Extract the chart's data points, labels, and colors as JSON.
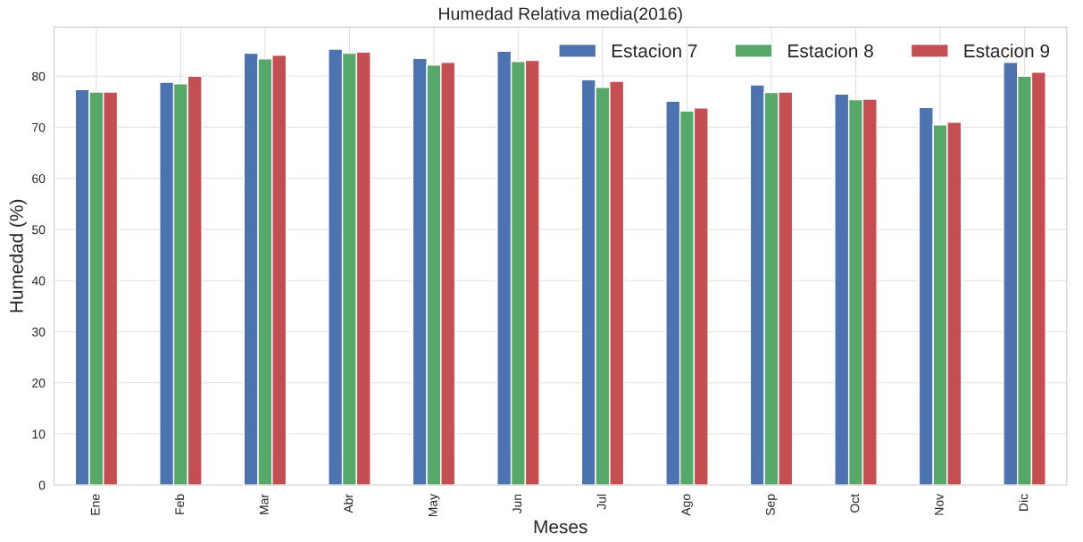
{
  "chart_data": {
    "type": "bar",
    "title": "Humedad Relativa media(2016)",
    "xlabel": "Meses",
    "ylabel": "Humedad (%)",
    "categories": [
      "Ene",
      "Feb",
      "Mar",
      "Abr",
      "May",
      "Jun",
      "Jul",
      "Ago",
      "Sep",
      "Oct",
      "Nov",
      "Dic"
    ],
    "series": [
      {
        "name": "Estacion 7",
        "color": "#4c72b0",
        "values": [
          77.4,
          78.8,
          84.5,
          85.3,
          83.5,
          84.9,
          79.3,
          75.1,
          78.3,
          76.5,
          73.9,
          82.7
        ]
      },
      {
        "name": "Estacion 8",
        "color": "#55a868",
        "values": [
          76.9,
          78.5,
          83.4,
          84.5,
          82.2,
          82.9,
          77.8,
          73.2,
          76.8,
          75.4,
          70.5,
          80.0
        ]
      },
      {
        "name": "Estacion 9",
        "color": "#c44e52",
        "values": [
          76.9,
          80.0,
          84.1,
          84.7,
          82.7,
          83.1,
          79.0,
          73.8,
          76.9,
          75.5,
          71.0,
          80.8
        ]
      }
    ],
    "ylim": [
      0,
      89.6
    ],
    "yticks": [
      0,
      10,
      20,
      30,
      40,
      50,
      60,
      70,
      80
    ],
    "grid": true,
    "legend": "top right"
  }
}
